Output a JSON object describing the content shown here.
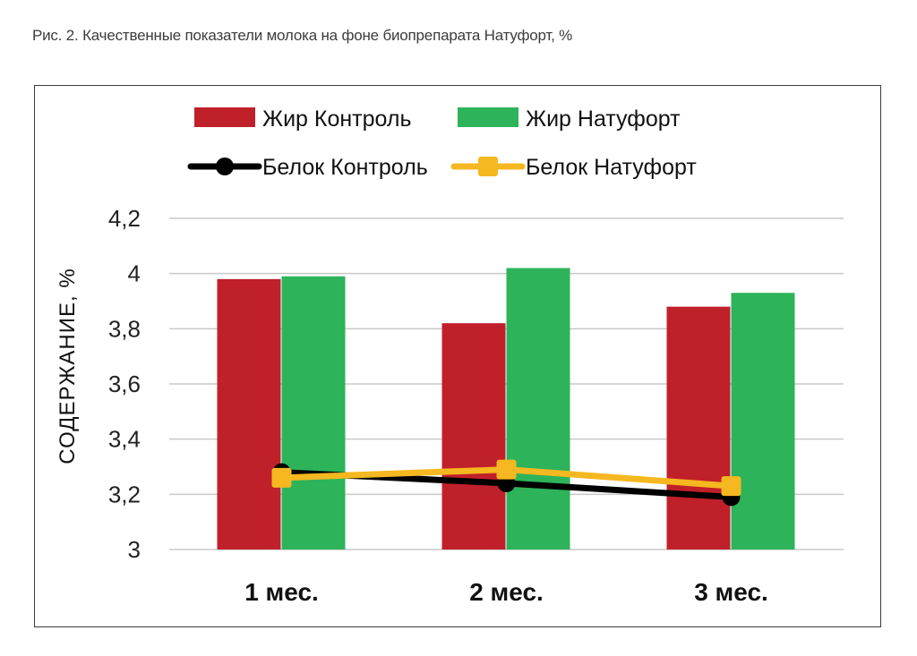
{
  "caption": "Рис. 2. Качественные показатели молока на фоне биопрепарата Натуфорт, %",
  "colors": {
    "fat_control": "#c0202a",
    "fat_natufort": "#2db35a",
    "protein_control": "#000000",
    "protein_natufort": "#f5b820",
    "grid": "#c8c8c8"
  },
  "chart_data": {
    "type": "bar",
    "title": "",
    "ylabel": "СОДЕРЖАНИЕ, %",
    "xlabel": "",
    "ylim": [
      3,
      4.2
    ],
    "yticks": [
      "3",
      "3,2",
      "3,4",
      "3,6",
      "3,8",
      "4",
      "4,2"
    ],
    "ytick_values": [
      3,
      3.2,
      3.4,
      3.6,
      3.8,
      4,
      4.2
    ],
    "categories": [
      "1 мес.",
      "2 мес.",
      "3 мес."
    ],
    "grid": true,
    "legend_position": "top",
    "series": [
      {
        "name": "Жир Контроль",
        "kind": "bar",
        "values": [
          3.98,
          3.82,
          3.88
        ]
      },
      {
        "name": "Жир Натуфорт",
        "kind": "bar",
        "values": [
          3.99,
          4.02,
          3.93
        ]
      },
      {
        "name": "Белок Контроль",
        "kind": "line",
        "marker": "circle",
        "values": [
          3.28,
          3.24,
          3.19
        ]
      },
      {
        "name": "Белок Натуфорт",
        "kind": "line",
        "marker": "square",
        "values": [
          3.26,
          3.29,
          3.23
        ]
      }
    ]
  }
}
